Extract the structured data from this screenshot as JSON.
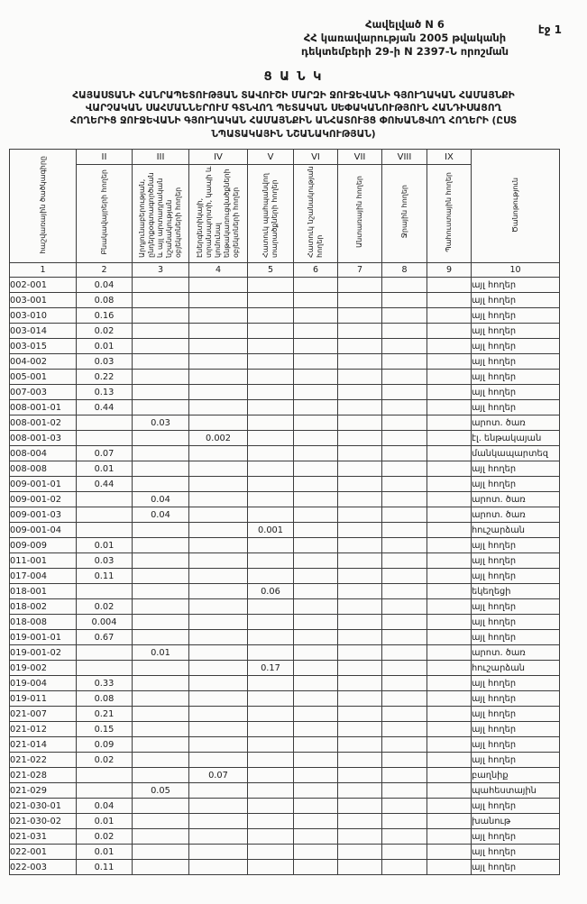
{
  "page": {
    "page_label": "էջ 1",
    "annex_lines": [
      "Հավելված N 6",
      "ՀՀ կառավարության 2005 թվականի",
      "դեկտեմբերի 29-ի N 2397-Ն որոշման"
    ],
    "title": "Ց Ա Ն Կ",
    "subtitle_lines": [
      "ՀԱՅԱՍՏԱՆԻ ՀԱՆՐԱՊԵՏՈՒԹՅԱՆ ՏԱՎՈՒՇԻ ՄԱՐԶԻ ՋՈՒՋԵՎԱՆԻ ԳՅՈՒՂԱԿԱՆ ՀԱՄԱՅՆՔԻ",
      "ՎԱՐՉԱԿԱՆ ՍԱՀՄԱՆՆԵՐՈՒՄ ԳՏՆՎՈՂ ՊԵՏԱԿԱՆ ՍԵՓԱԿԱՆՈՒԹՅՈՒՆ ՀԱՆԴԻՍԱՑՈՂ",
      "ՀՈՂԵՐԻՑ ՋՈՒՋԵՎԱՆԻ ԳՅՈՒՂԱԿԱՆ ՀԱՄԱՅՆՔԻՆ ԱՆՀԱՏՈՒՅՑ ՓՈԽԱՆՑՎՈՂ ՀՈՂԵՐԻ (ԸՍՏ",
      "ՆՊԱՏԱԿԱՅԻՆ ՆՇԱՆԱԿՈՒԹՅԱՆ)"
    ]
  },
  "table": {
    "corner_header": "հաշվառային ծածկագիրը",
    "note_header": "Ծանոթություն",
    "roman_numerals": [
      "II",
      "III",
      "IV",
      "V",
      "VI",
      "VII",
      "VIII",
      "IX"
    ],
    "col_headers": [
      "Բնակավայրերի հողեր",
      "Արդյունաբերության, ընդերքօգտագործման և այլ արտադրական նշանակության օբյեկտների հողեր",
      "Էներգետիկայի, տրանսպորտի, կապի և կոմունալ ենթակառուցվածքների օբյեկտների հողեր",
      "Հատուկ պահպանվող տարածքների հողեր",
      "Հատուկ նշանակության հողեր",
      "Անտառային հողեր",
      "Ջրային հողեր",
      "Պահուստային հողեր"
    ],
    "number_row": [
      "1",
      "2",
      "3",
      "4",
      "5",
      "6",
      "7",
      "8",
      "9",
      "10"
    ],
    "footnote_mark": "*)",
    "rows": [
      {
        "code": "002-001",
        "c2": "0.04",
        "note": "այլ հողեր"
      },
      {
        "code": "003-001",
        "c2": "0.08",
        "note": "այլ հողեր"
      },
      {
        "code": "003-010",
        "c2": "0.16",
        "note": "այլ հողեր"
      },
      {
        "code": "003-014",
        "c2": "0.02",
        "note": "այլ հողեր"
      },
      {
        "code": "003-015",
        "c2": "0.01",
        "note": "այլ հողեր"
      },
      {
        "code": "004-002",
        "c2": "0.03",
        "note": "այլ հողեր"
      },
      {
        "code": "005-001",
        "c2": "0.22",
        "note": "այլ հողեր"
      },
      {
        "code": "007-003",
        "c2": "0.13",
        "note": "այլ հողեր"
      },
      {
        "code": "008-001-01",
        "c2": "0.44",
        "note": "այլ հողեր"
      },
      {
        "code": "008-001-02",
        "c3": "0.03",
        "note": "արոտ. ծառ"
      },
      {
        "code": "008-001-03",
        "c4": "0.002",
        "note": "էլ. ենթակայան"
      },
      {
        "code": "008-004",
        "c2": "0.07",
        "note": "մանկապարտեզ"
      },
      {
        "code": "008-008",
        "c2": "0.01",
        "note": "այլ հողեր"
      },
      {
        "code": "009-001-01",
        "c2": "0.44",
        "note": "այլ հողեր"
      },
      {
        "code": "009-001-02",
        "c3": "0.04",
        "note": "արոտ. ծառ"
      },
      {
        "code": "009-001-03",
        "c3": "0.04",
        "note": "արոտ. ծառ"
      },
      {
        "code": "009-001-04",
        "c5": "0.001",
        "note": "հուշարձան",
        "mark": true
      },
      {
        "code": "009-009",
        "c2": "0.01",
        "note": "այլ հողեր"
      },
      {
        "code": "011-001",
        "c2": "0.03",
        "note": "այլ հողեր"
      },
      {
        "code": "017-004",
        "c2": "0.11",
        "note": "այլ հողեր"
      },
      {
        "code": "018-001",
        "c5": "0.06",
        "note": "եկեղեցի",
        "mark": true
      },
      {
        "code": "018-002",
        "c2": "0.02",
        "note": "այլ հողեր"
      },
      {
        "code": "018-008",
        "c2": "0.004",
        "note": "այլ հողեր"
      },
      {
        "code": "019-001-01",
        "c2": "0.67",
        "note": "այլ հողեր"
      },
      {
        "code": "019-001-02",
        "c3": "0.01",
        "note": "արոտ. ծառ"
      },
      {
        "code": "019-002",
        "c5": "0.17",
        "note": "հուշարձան",
        "mark": true
      },
      {
        "code": "019-004",
        "c2": "0.33",
        "note": "այլ հողեր"
      },
      {
        "code": "019-011",
        "c2": "0.08",
        "note": "այլ հողեր"
      },
      {
        "code": "021-007",
        "c2": "0.21",
        "note": "այլ հողեր"
      },
      {
        "code": "021-012",
        "c2": "0.15",
        "note": "այլ հողեր"
      },
      {
        "code": "021-014",
        "c2": "0.09",
        "note": "այլ հողեր"
      },
      {
        "code": "021-022",
        "c2": "0.02",
        "note": "այլ հողեր"
      },
      {
        "code": "021-028",
        "c4": "0.07",
        "note": "բաղնիք"
      },
      {
        "code": "021-029",
        "c3": "0.05",
        "note": "պահեստային"
      },
      {
        "code": "021-030-01",
        "c2": "0.04",
        "note": "այլ հողեր"
      },
      {
        "code": "021-030-02",
        "c2": "0.01",
        "note": "խանութ"
      },
      {
        "code": "021-031",
        "c2": "0.02",
        "note": "այլ հողեր"
      },
      {
        "code": "022-001",
        "c2": "0.01",
        "note": "այլ հողեր"
      },
      {
        "code": "022-003",
        "c2": "0.11",
        "note": "այլ հողեր"
      }
    ]
  }
}
